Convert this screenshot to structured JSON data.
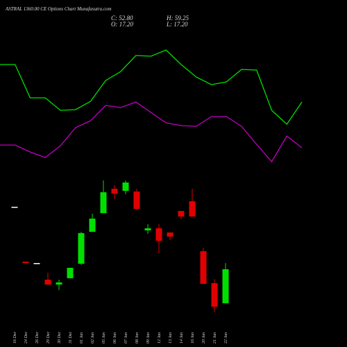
{
  "chart_data": [
    {
      "type": "candlestick",
      "title": "ASTRAL 1360.00 CE Options Chart Munafasutra.com",
      "stats": [
        "C: 52.80",
        "H: 59.25",
        "O: 17.20",
        "L: 17.20"
      ],
      "categories": [
        "16 Dec",
        "24 Dec",
        "26 Dec",
        "29 Dec",
        "30 Dec",
        "31 Dec",
        "01 Jan",
        "02 Jan",
        "05 Jan",
        "06 Jan",
        "07 Jan",
        "08 Jan",
        "09 Jan",
        "12 Jan",
        "13 Jan",
        "14 Jan",
        "16 Jan",
        "20 Jan",
        "21 Jan",
        "22 Jan"
      ],
      "open": [
        118.2,
        60.8,
        59.3,
        41.9,
        36.8,
        43.4,
        58.6,
        92.0,
        111.6,
        137.1,
        134.9,
        134.2,
        93.5,
        95.7,
        91.3,
        113.8,
        124.0,
        71.7,
        38.3,
        17.2
      ],
      "high": [
        118.2,
        60.8,
        59.3,
        49.2,
        41.9,
        54.3,
        92.0,
        110.9,
        145.8,
        140.7,
        145.8,
        137.1,
        100.0,
        100.0,
        91.3,
        113.8,
        137.1,
        75.3,
        42.6,
        59.25
      ],
      "low": [
        118.2,
        59.3,
        59.3,
        36.8,
        31.0,
        43.4,
        57.2,
        92.0,
        111.6,
        126.2,
        131.3,
        114.6,
        89.9,
        69.5,
        83.3,
        105.1,
        108.0,
        37.5,
        7.8,
        17.2
      ],
      "close": [
        118.2,
        59.3,
        59.3,
        36.8,
        39.0,
        54.3,
        90.6,
        105.8,
        133.4,
        132.0,
        143.6,
        116.0,
        95.7,
        82.6,
        87.0,
        108.0,
        108.0,
        37.5,
        13.6,
        52.8
      ],
      "up_color": "#00e000",
      "down_color": "#e00000",
      "flat_color": "#ffffff",
      "ylim": [
        -28.6,
        334.7
      ]
    },
    {
      "type": "line",
      "series": [
        {
          "color": "#00e000",
          "values": [
            407,
            407,
            359,
            359,
            341,
            342,
            354,
            384,
            397,
            420,
            419,
            428,
            407,
            389,
            378,
            382,
            400,
            399,
            341,
            321,
            353
          ]
        },
        {
          "color": "#c000c0",
          "values": [
            291,
            291,
            281,
            273,
            290,
            316,
            326,
            348,
            345,
            353,
            338,
            323,
            319,
            318,
            332,
            332,
            318,
            292,
            267,
            304,
            287
          ]
        }
      ],
      "ylim": [
        0,
        500
      ]
    }
  ]
}
